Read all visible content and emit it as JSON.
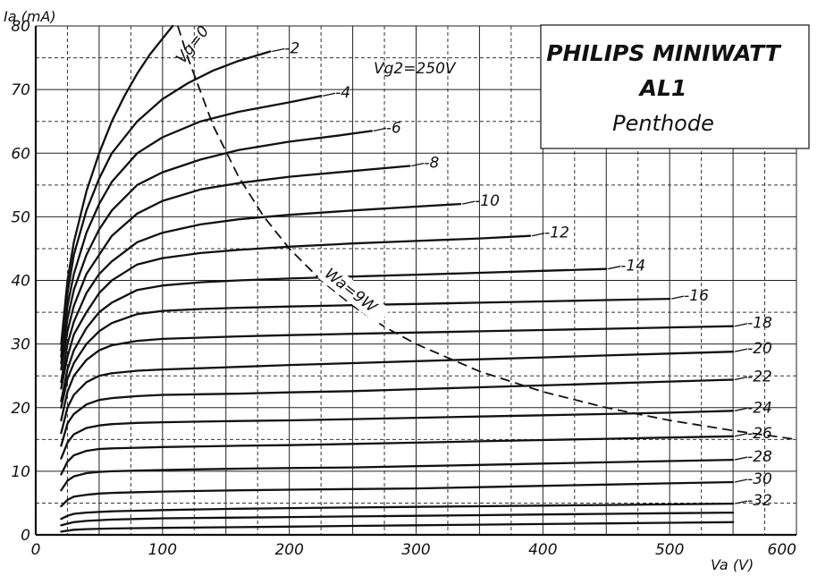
{
  "chart_data": {
    "type": "line",
    "title": "PHILIPS MINIWATT",
    "title_lines": [
      "PHILIPS MINIWATT",
      "AL1",
      "Penthode"
    ],
    "condition": "Vg2=250V",
    "xlabel": "Va (V)",
    "ylabel": "Ia (mA)",
    "xlim": [
      0,
      600
    ],
    "ylim": [
      0,
      80
    ],
    "xticks": [
      "0",
      "100",
      "200",
      "300",
      "400",
      "500",
      "600"
    ],
    "yticks": [
      "0",
      "10",
      "20",
      "30",
      "40",
      "50",
      "60",
      "70",
      "80"
    ],
    "grid": true,
    "series": [
      {
        "name": "Vg=0",
        "label": "Vg=0",
        "x": [
          20,
          25,
          30,
          40,
          50,
          60,
          70,
          80,
          90,
          100,
          108
        ],
        "y": [
          30,
          40,
          46,
          54,
          60,
          65,
          69,
          72.5,
          75.5,
          78,
          80
        ]
      },
      {
        "name": "-2",
        "label": "-2",
        "x": [
          20,
          25,
          30,
          40,
          50,
          60,
          80,
          100,
          120,
          140,
          160,
          185
        ],
        "y": [
          29,
          38,
          44,
          51,
          56,
          60,
          65,
          68.5,
          71,
          73,
          74.5,
          76
        ]
      },
      {
        "name": "-4",
        "label": "-4",
        "x": [
          20,
          25,
          30,
          40,
          50,
          60,
          80,
          100,
          130,
          160,
          200,
          225
        ],
        "y": [
          28,
          36,
          41,
          47.5,
          52,
          55.5,
          60,
          62.5,
          65,
          66.5,
          68,
          69
        ]
      },
      {
        "name": "-6",
        "label": "-6",
        "x": [
          20,
          25,
          30,
          40,
          50,
          60,
          80,
          100,
          130,
          160,
          200,
          240,
          265
        ],
        "y": [
          27,
          34,
          38.5,
          44,
          48,
          51,
          55,
          57,
          59,
          60.5,
          61.8,
          62.8,
          63.5
        ]
      },
      {
        "name": "-8",
        "label": "-8",
        "x": [
          20,
          25,
          30,
          40,
          50,
          60,
          80,
          100,
          130,
          160,
          200,
          250,
          295
        ],
        "y": [
          26,
          32,
          36,
          41,
          44,
          47,
          50.5,
          52.5,
          54.3,
          55.3,
          56.3,
          57.2,
          58
        ]
      },
      {
        "name": "-10",
        "label": "-10",
        "x": [
          20,
          25,
          30,
          40,
          50,
          60,
          80,
          100,
          130,
          160,
          200,
          250,
          300,
          335
        ],
        "y": [
          24,
          30,
          33.5,
          38,
          41,
          43,
          46,
          47.5,
          48.8,
          49.6,
          50.3,
          51,
          51.6,
          52
        ]
      },
      {
        "name": "-12",
        "label": "-12",
        "x": [
          20,
          25,
          30,
          40,
          50,
          60,
          80,
          100,
          130,
          160,
          200,
          250,
          300,
          350,
          390
        ],
        "y": [
          23,
          28,
          31.5,
          35,
          38,
          40,
          42.5,
          43.5,
          44.3,
          44.8,
          45.3,
          45.8,
          46.2,
          46.6,
          47
        ]
      },
      {
        "name": "-14",
        "label": "-14",
        "x": [
          20,
          25,
          30,
          40,
          50,
          60,
          80,
          100,
          130,
          160,
          200,
          250,
          300,
          350,
          400,
          450
        ],
        "y": [
          21,
          26,
          29,
          32.5,
          35,
          36.5,
          38.5,
          39.2,
          39.7,
          40,
          40.3,
          40.6,
          40.9,
          41.2,
          41.5,
          41.8
        ]
      },
      {
        "name": "-16",
        "label": "-16",
        "x": [
          20,
          25,
          30,
          40,
          50,
          60,
          80,
          100,
          130,
          160,
          200,
          250,
          300,
          350,
          400,
          450,
          500
        ],
        "y": [
          20,
          24.5,
          27,
          30,
          32,
          33.3,
          34.7,
          35.2,
          35.5,
          35.7,
          35.9,
          36.1,
          36.3,
          36.5,
          36.7,
          36.9,
          37.1
        ]
      },
      {
        "name": "-18",
        "label": "-18",
        "x": [
          20,
          25,
          30,
          40,
          50,
          60,
          80,
          100,
          130,
          160,
          200,
          250,
          300,
          350,
          400,
          450,
          500,
          550
        ],
        "y": [
          18,
          22.5,
          25,
          27.5,
          29,
          29.8,
          30.5,
          30.8,
          31,
          31.2,
          31.4,
          31.6,
          31.8,
          32,
          32.2,
          32.4,
          32.6,
          32.8
        ]
      },
      {
        "name": "-20",
        "label": "-20",
        "x": [
          20,
          25,
          30,
          40,
          50,
          60,
          80,
          100,
          130,
          160,
          200,
          250,
          300,
          350,
          400,
          450,
          500,
          550
        ],
        "y": [
          16,
          20,
          22,
          24,
          25,
          25.4,
          25.8,
          26,
          26.2,
          26.4,
          26.7,
          27,
          27.3,
          27.6,
          27.9,
          28.2,
          28.5,
          28.8
        ]
      },
      {
        "name": "-22",
        "label": "-22",
        "x": [
          20,
          25,
          30,
          40,
          50,
          60,
          80,
          100,
          130,
          160,
          200,
          250,
          300,
          350,
          400,
          450,
          500,
          550
        ],
        "y": [
          14,
          17.5,
          19,
          20.5,
          21.2,
          21.5,
          21.8,
          22,
          22.1,
          22.2,
          22.4,
          22.6,
          22.9,
          23.2,
          23.5,
          23.8,
          24.1,
          24.4
        ]
      },
      {
        "name": "-24",
        "label": "-24",
        "x": [
          20,
          25,
          30,
          40,
          50,
          60,
          80,
          100,
          130,
          160,
          200,
          250,
          300,
          350,
          400,
          450,
          500,
          550
        ],
        "y": [
          12,
          14.5,
          15.8,
          16.8,
          17.2,
          17.4,
          17.6,
          17.7,
          17.8,
          17.9,
          18,
          18.2,
          18.4,
          18.6,
          18.8,
          19,
          19.2,
          19.5
        ]
      },
      {
        "name": "-26",
        "label": "-26",
        "x": [
          20,
          25,
          30,
          40,
          50,
          60,
          80,
          100,
          130,
          160,
          200,
          250,
          300,
          350,
          400,
          450,
          500,
          550
        ],
        "y": [
          9.5,
          11.5,
          12.5,
          13.2,
          13.5,
          13.6,
          13.7,
          13.8,
          13.9,
          14,
          14.1,
          14.3,
          14.5,
          14.7,
          14.9,
          15.1,
          15.3,
          15.5
        ]
      },
      {
        "name": "-28",
        "label": "-28",
        "x": [
          20,
          25,
          30,
          40,
          50,
          60,
          80,
          100,
          130,
          160,
          200,
          250,
          300,
          350,
          400,
          450,
          500,
          550
        ],
        "y": [
          7,
          8.5,
          9.2,
          9.7,
          9.9,
          10,
          10.1,
          10.2,
          10.3,
          10.4,
          10.5,
          10.6,
          10.8,
          11,
          11.2,
          11.4,
          11.6,
          11.8
        ]
      },
      {
        "name": "-30",
        "label": "-30",
        "x": [
          20,
          25,
          30,
          40,
          50,
          60,
          80,
          100,
          130,
          160,
          200,
          250,
          300,
          350,
          400,
          450,
          500,
          550
        ],
        "y": [
          4.5,
          5.5,
          6,
          6.3,
          6.5,
          6.6,
          6.7,
          6.8,
          6.9,
          7,
          7.1,
          7.2,
          7.3,
          7.5,
          7.7,
          7.9,
          8.1,
          8.3
        ]
      },
      {
        "name": "-32",
        "label": "-32",
        "x": [
          20,
          25,
          30,
          40,
          50,
          60,
          80,
          100,
          130,
          160,
          200,
          250,
          300,
          350,
          400,
          450,
          500,
          550
        ],
        "y": [
          2.5,
          3,
          3.3,
          3.5,
          3.6,
          3.7,
          3.8,
          3.9,
          4,
          4.1,
          4.2,
          4.3,
          4.4,
          4.5,
          4.6,
          4.7,
          4.8,
          4.9
        ]
      },
      {
        "name": "",
        "label": "",
        "x": [
          20,
          30,
          40,
          60,
          80,
          100,
          150,
          200,
          250,
          300,
          350,
          400,
          450,
          500,
          550
        ],
        "y": [
          1.5,
          2,
          2.2,
          2.4,
          2.5,
          2.6,
          2.7,
          2.8,
          2.9,
          3,
          3.1,
          3.2,
          3.3,
          3.4,
          3.5
        ]
      },
      {
        "name": "",
        "label": "",
        "x": [
          20,
          30,
          40,
          60,
          80,
          100,
          150,
          200,
          250,
          300,
          350,
          400,
          450,
          500,
          550
        ],
        "y": [
          0.5,
          0.8,
          0.9,
          1,
          1.05,
          1.1,
          1.2,
          1.3,
          1.4,
          1.5,
          1.6,
          1.7,
          1.8,
          1.9,
          2
        ]
      }
    ],
    "dissipation_curve": {
      "label": "Wa=9W",
      "x": [
        112,
        120,
        140,
        160,
        180,
        200,
        225,
        250,
        275,
        300,
        350,
        400,
        450,
        500,
        550,
        600
      ],
      "y": [
        80,
        75,
        64.3,
        56.3,
        50,
        45,
        40,
        36,
        32.7,
        30,
        25.7,
        22.5,
        20,
        18,
        16.4,
        15
      ]
    }
  }
}
